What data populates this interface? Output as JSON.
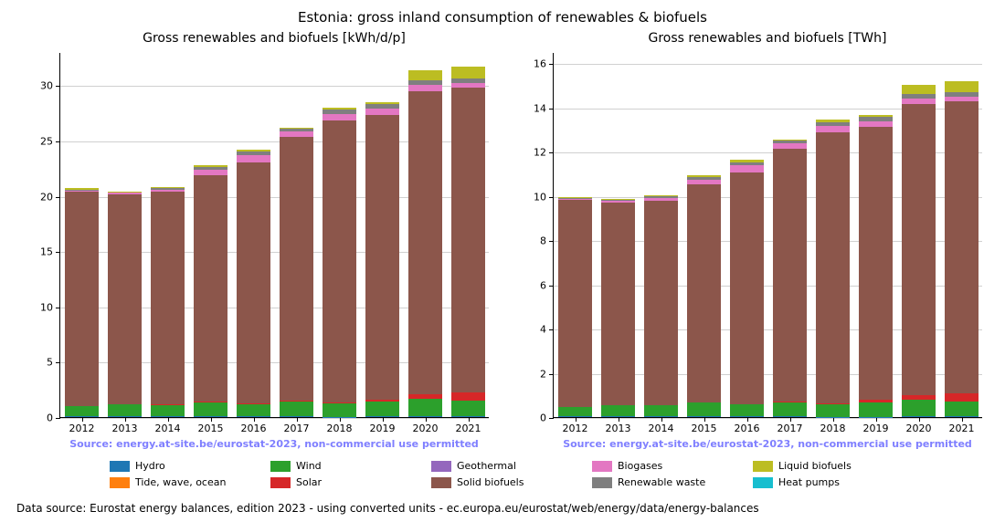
{
  "suptitle": "Estonia: gross inland consumption of renewables & biofuels",
  "series_order": [
    "hydro",
    "tide",
    "wind",
    "solar",
    "geothermal",
    "solid_biofuels",
    "biogases",
    "renewable_waste",
    "liquid_biofuels",
    "heat_pumps"
  ],
  "series_meta": {
    "hydro": {
      "label": "Hydro",
      "color": "#1f77b4"
    },
    "tide": {
      "label": "Tide, wave, ocean",
      "color": "#ff7f0e"
    },
    "wind": {
      "label": "Wind",
      "color": "#2ca02c"
    },
    "solar": {
      "label": "Solar",
      "color": "#d62728"
    },
    "geothermal": {
      "label": "Geothermal",
      "color": "#9467bd"
    },
    "solid_biofuels": {
      "label": "Solid biofuels",
      "color": "#8c564b"
    },
    "biogases": {
      "label": "Biogases",
      "color": "#e377c2"
    },
    "renewable_waste": {
      "label": "Renewable waste",
      "color": "#7f7f7f"
    },
    "liquid_biofuels": {
      "label": "Liquid biofuels",
      "color": "#bcbd22"
    },
    "heat_pumps": {
      "label": "Heat pumps",
      "color": "#17becf"
    }
  },
  "years": [
    "2012",
    "2013",
    "2014",
    "2015",
    "2016",
    "2017",
    "2018",
    "2019",
    "2020",
    "2021"
  ],
  "left_chart": {
    "title": "Gross renewables and biofuels [kWh/d/p]",
    "ylim": [
      0,
      33
    ],
    "yticks": [
      0,
      5,
      10,
      15,
      20,
      25,
      30
    ],
    "grid_color": "#b0b0b0",
    "background_color": "#ffffff",
    "bar_width": 0.78,
    "data": {
      "hydro": [
        0.09,
        0.06,
        0.06,
        0.06,
        0.07,
        0.06,
        0.04,
        0.05,
        0.06,
        0.06
      ],
      "tide": [
        0,
        0,
        0,
        0,
        0,
        0,
        0,
        0,
        0,
        0
      ],
      "wind": [
        0.9,
        1.06,
        1.07,
        1.3,
        1.17,
        1.4,
        1.2,
        1.35,
        1.6,
        1.4
      ],
      "solar": [
        0.0,
        0.0,
        0.01,
        0.01,
        0.01,
        0.03,
        0.06,
        0.21,
        0.4,
        0.8
      ],
      "geothermal": [
        0,
        0,
        0,
        0,
        0,
        0,
        0,
        0,
        0,
        0
      ],
      "solid_biofuels": [
        19.4,
        19.0,
        19.2,
        20.5,
        21.8,
        23.8,
        25.5,
        25.7,
        27.4,
        27.5
      ],
      "biogases": [
        0.16,
        0.24,
        0.24,
        0.45,
        0.66,
        0.55,
        0.6,
        0.54,
        0.54,
        0.4
      ],
      "renewable_waste": [
        0.02,
        0.02,
        0.2,
        0.3,
        0.3,
        0.3,
        0.4,
        0.44,
        0.42,
        0.42
      ],
      "liquid_biofuels": [
        0.12,
        0.04,
        0.04,
        0.12,
        0.2,
        0.02,
        0.2,
        0.2,
        0.9,
        1.1
      ],
      "heat_pumps": [
        0,
        0,
        0,
        0,
        0,
        0,
        0,
        0,
        0,
        0
      ]
    },
    "source_note": "Source: energy.at-site.be/eurostat-2023, non-commercial use permitted"
  },
  "right_chart": {
    "title": "Gross renewables and biofuels [TWh]",
    "ylim": [
      0,
      16.5
    ],
    "yticks": [
      0,
      2,
      4,
      6,
      8,
      10,
      12,
      14,
      16
    ],
    "grid_color": "#b0b0b0",
    "background_color": "#ffffff",
    "bar_width": 0.78,
    "data": {
      "hydro": [
        0.04,
        0.03,
        0.03,
        0.03,
        0.03,
        0.03,
        0.02,
        0.02,
        0.03,
        0.03
      ],
      "tide": [
        0,
        0,
        0,
        0,
        0,
        0,
        0,
        0,
        0,
        0
      ],
      "wind": [
        0.43,
        0.51,
        0.52,
        0.63,
        0.56,
        0.67,
        0.58,
        0.65,
        0.77,
        0.67
      ],
      "solar": [
        0.0,
        0.0,
        0.0,
        0.0,
        0.0,
        0.01,
        0.03,
        0.1,
        0.19,
        0.38
      ],
      "geothermal": [
        0,
        0,
        0,
        0,
        0,
        0,
        0,
        0,
        0,
        0
      ],
      "solid_biofuels": [
        9.34,
        9.15,
        9.23,
        9.84,
        10.47,
        11.42,
        12.23,
        12.33,
        13.15,
        13.2
      ],
      "biogases": [
        0.08,
        0.12,
        0.12,
        0.22,
        0.32,
        0.26,
        0.29,
        0.26,
        0.26,
        0.19
      ],
      "renewable_waste": [
        0.01,
        0.01,
        0.1,
        0.14,
        0.14,
        0.14,
        0.19,
        0.21,
        0.2,
        0.2
      ],
      "liquid_biofuels": [
        0.06,
        0.02,
        0.02,
        0.06,
        0.1,
        0.01,
        0.1,
        0.1,
        0.43,
        0.53
      ],
      "heat_pumps": [
        0,
        0,
        0,
        0,
        0,
        0,
        0,
        0,
        0,
        0
      ]
    },
    "source_note": "Source: energy.at-site.be/eurostat-2023, non-commercial use permitted"
  },
  "legend": {
    "columns": 5,
    "order": [
      "hydro",
      "tide",
      "wind",
      "solar",
      "geothermal",
      "solid_biofuels",
      "biogases",
      "renewable_waste",
      "liquid_biofuels",
      "heat_pumps"
    ]
  },
  "footer": "Data source: Eurostat energy balances, edition 2023 - using converted units - ec.europa.eu/eurostat/web/energy/data/energy-balances",
  "style": {
    "suptitle_fontsize": 15,
    "title_fontsize": 14,
    "tick_fontsize": 11,
    "legend_fontsize": 11,
    "footer_fontsize": 12,
    "source_color": "#7f7fff"
  }
}
